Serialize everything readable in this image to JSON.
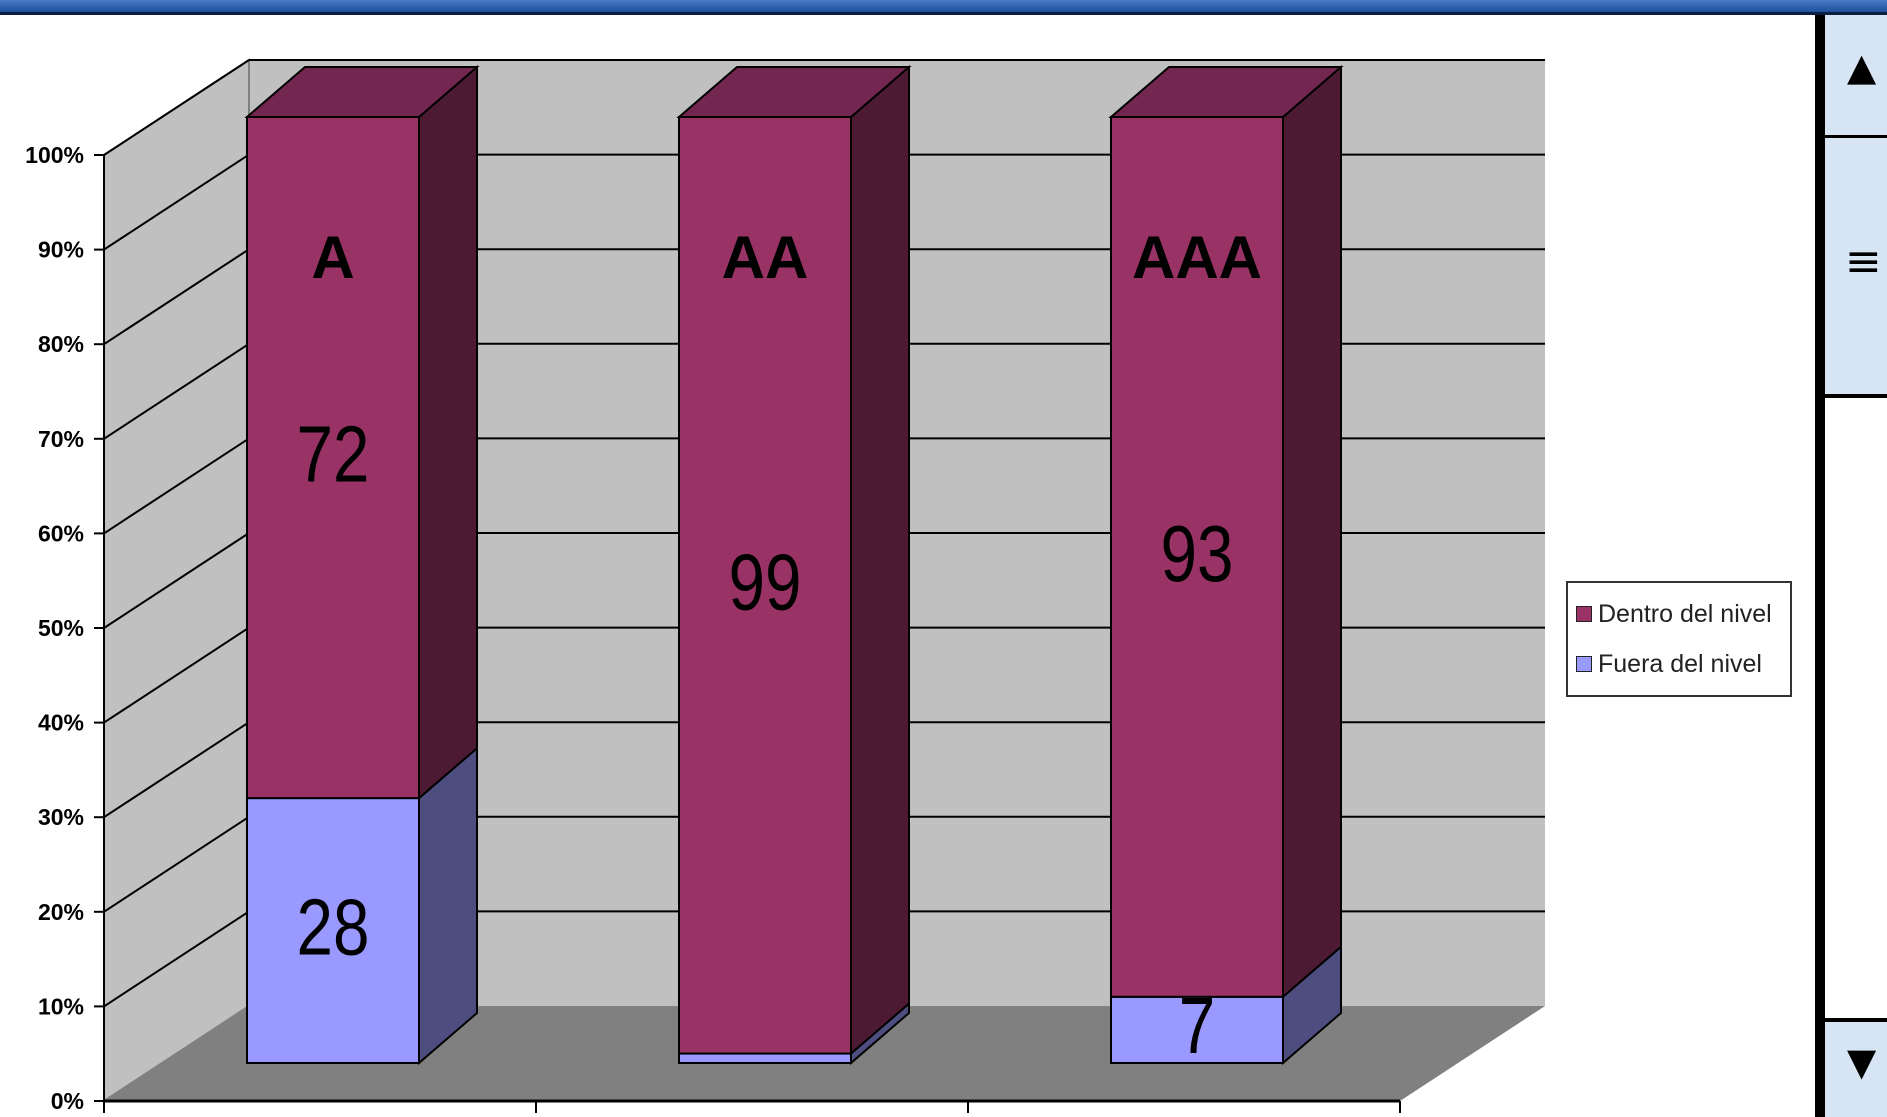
{
  "chart_data": {
    "type": "bar",
    "stacked": true,
    "percent": true,
    "three_d": true,
    "categories": [
      "A",
      "AA",
      "AAA"
    ],
    "series": [
      {
        "name": "Fuera del nivel",
        "values": [
          28,
          1,
          7
        ],
        "color": "#9999ff",
        "side_color": "#4d4d80"
      },
      {
        "name": "Dentro del nivel",
        "values": [
          72,
          99,
          93
        ],
        "color": "#993366",
        "side_color": "#4d1a33"
      }
    ],
    "yticks": [
      "0%",
      "10%",
      "20%",
      "30%",
      "40%",
      "50%",
      "60%",
      "70%",
      "80%",
      "90%",
      "100%"
    ],
    "ylim": [
      0,
      100
    ],
    "legend_position": "right",
    "grid": true,
    "wall_color": "#c0c0c0",
    "floor_color": "#808080"
  },
  "legend": {
    "items": [
      {
        "label": "Dentro del nivel",
        "color": "#993366"
      },
      {
        "label": "Fuera del nivel",
        "color": "#9999ff"
      }
    ]
  },
  "scrollbar": {
    "up_icon": "triangle-up-icon",
    "thumb_icon": "grip-icon",
    "down_icon": "triangle-down-icon"
  }
}
